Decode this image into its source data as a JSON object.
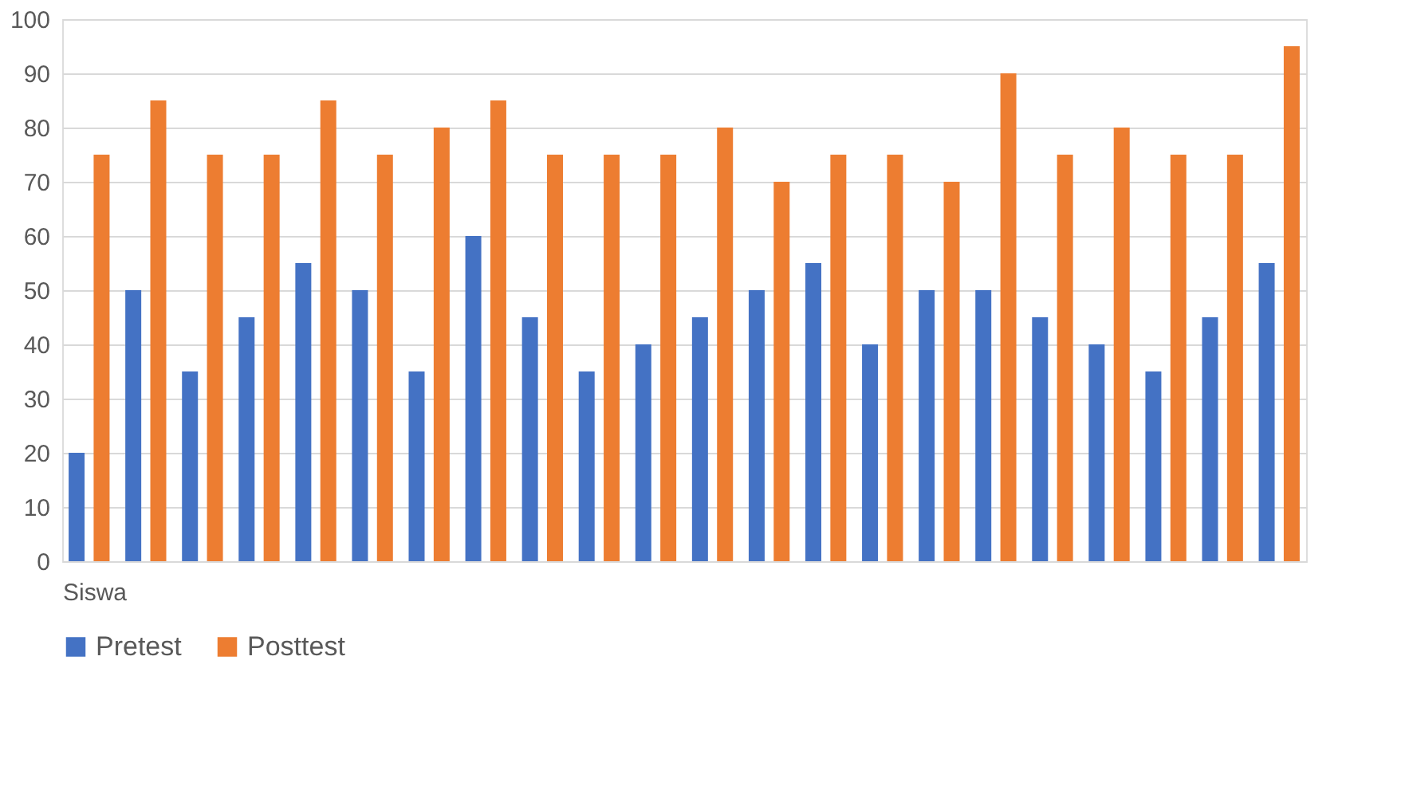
{
  "chart_data": {
    "type": "bar",
    "xlabel": "Siswa",
    "categories": [
      null,
      null,
      null,
      null,
      null,
      null,
      null,
      null,
      null,
      null,
      null,
      null,
      null,
      null,
      null,
      null,
      null,
      null,
      null,
      null,
      null,
      null
    ],
    "series": [
      {
        "name": "Pretest",
        "color": "#4472c4",
        "values": [
          20,
          50,
          35,
          45,
          55,
          50,
          35,
          60,
          45,
          35,
          40,
          45,
          50,
          55,
          40,
          50,
          50,
          45,
          40,
          35,
          45,
          55
        ]
      },
      {
        "name": "Posttest",
        "color": "#ed7d31",
        "values": [
          75,
          85,
          75,
          75,
          85,
          75,
          80,
          85,
          75,
          75,
          75,
          80,
          70,
          75,
          75,
          70,
          90,
          75,
          80,
          75,
          75,
          95
        ]
      }
    ],
    "ylim": [
      0,
      100
    ],
    "yticks": [
      0,
      10,
      20,
      30,
      40,
      50,
      60,
      70,
      80,
      90,
      100
    ],
    "grid": "y",
    "legend": "bottom",
    "tick_labels": "y"
  }
}
